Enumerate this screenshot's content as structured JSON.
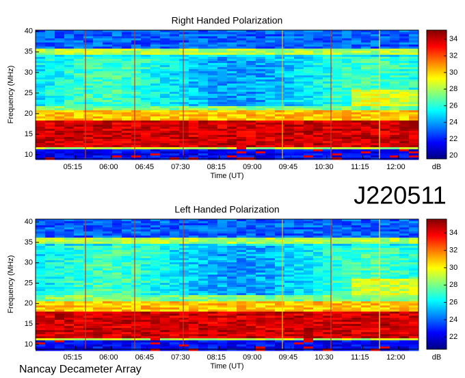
{
  "header": {
    "id": "J220511"
  },
  "footer": "Nancay Decameter Array",
  "chart_data": [
    {
      "type": "spectrogram",
      "title": "Right Handed Polarization",
      "xlabel": "Time (UT)",
      "ylabel": "Frequency (MHz)",
      "xlim": [
        265,
        745
      ],
      "xticks": [
        {
          "value": 315,
          "label": "05:15"
        },
        {
          "value": 360,
          "label": "06:00"
        },
        {
          "value": 405,
          "label": "06:45"
        },
        {
          "value": 450,
          "label": "07:30"
        },
        {
          "value": 495,
          "label": "08:15"
        },
        {
          "value": 540,
          "label": "09:00"
        },
        {
          "value": 585,
          "label": "09:45"
        },
        {
          "value": 630,
          "label": "10:30"
        },
        {
          "value": 675,
          "label": "11:15"
        },
        {
          "value": 720,
          "label": "12:00"
        }
      ],
      "ylim": [
        9,
        40.3
      ],
      "yticks": [
        10,
        15,
        20,
        25,
        30,
        35,
        40
      ],
      "colormap": "jet",
      "colorbar": {
        "label": "dB",
        "lim": [
          19.6,
          35.1
        ],
        "ticks": [
          20,
          22,
          24,
          26,
          28,
          30,
          32,
          34
        ]
      }
    },
    {
      "type": "spectrogram",
      "title": "Left Handed Polarization",
      "xlabel": "Time (UT)",
      "ylabel": "Frequency (MHz)",
      "xlim": [
        265,
        745
      ],
      "xticks": [
        {
          "value": 315,
          "label": "05:15"
        },
        {
          "value": 360,
          "label": "06:00"
        },
        {
          "value": 405,
          "label": "06:45"
        },
        {
          "value": 450,
          "label": "07:30"
        },
        {
          "value": 495,
          "label": "08:15"
        },
        {
          "value": 540,
          "label": "09:00"
        },
        {
          "value": 585,
          "label": "09:45"
        },
        {
          "value": 630,
          "label": "10:30"
        },
        {
          "value": 675,
          "label": "11:15"
        },
        {
          "value": 720,
          "label": "12:00"
        }
      ],
      "ylim": [
        8.8,
        40.7
      ],
      "yticks": [
        10,
        15,
        20,
        25,
        30,
        35,
        40
      ],
      "colormap": "jet",
      "colorbar": {
        "label": "dB",
        "lim": [
          20.6,
          35.6
        ],
        "ticks": [
          22,
          24,
          26,
          28,
          30,
          32,
          34
        ]
      }
    }
  ]
}
